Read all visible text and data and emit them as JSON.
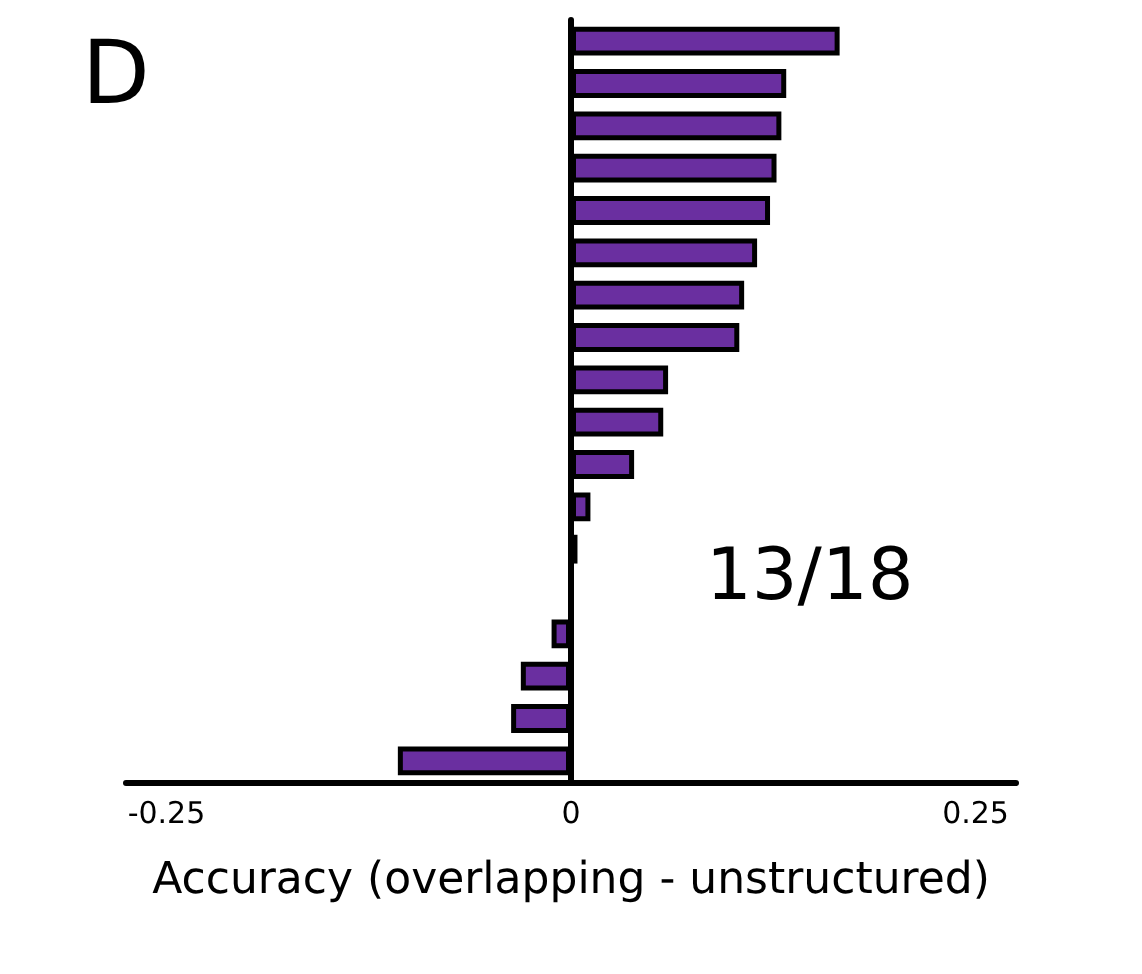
{
  "chart_data": {
    "type": "bar",
    "orientation": "horizontal",
    "title": "D",
    "xlabel": "Accuracy (overlapping - unstructured)",
    "annotations": [
      "13/18"
    ],
    "categories": [
      null,
      null,
      null,
      null,
      null,
      null,
      null,
      null,
      null,
      null,
      null,
      null,
      null,
      null,
      null,
      null,
      null,
      null
    ],
    "values": [
      0.166,
      0.133,
      0.13,
      0.127,
      0.123,
      0.115,
      0.107,
      0.104,
      0.06,
      0.057,
      0.039,
      0.012,
      0.004,
      null,
      -0.012,
      -0.031,
      -0.037,
      -0.107
    ],
    "color": "#6a2fa0",
    "xlim": [
      -0.275,
      0.275
    ],
    "xticks": [
      -0.25,
      0,
      0.25
    ]
  }
}
